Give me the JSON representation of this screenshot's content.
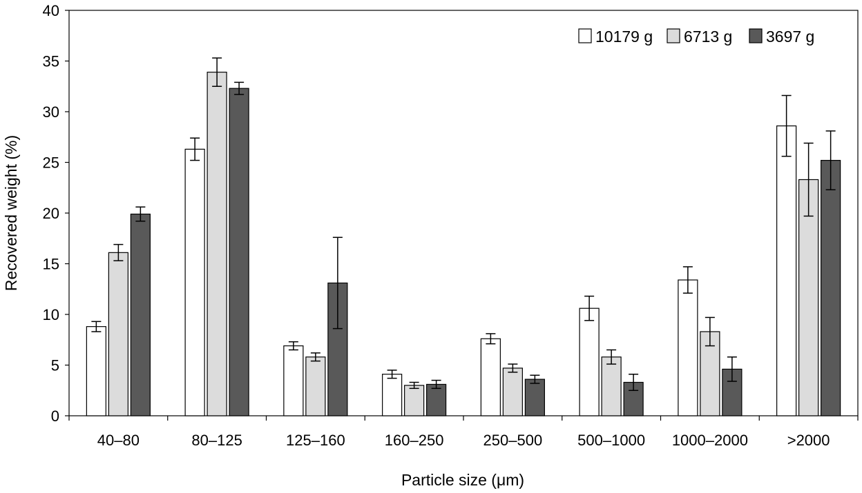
{
  "chart_data": {
    "type": "bar",
    "title": "",
    "xlabel": "Particle size (μm)",
    "ylabel": "Recovered weight (%)",
    "ylim": [
      0,
      40
    ],
    "yticks": [
      0,
      5,
      10,
      15,
      20,
      25,
      30,
      35,
      40
    ],
    "categories": [
      "40–80",
      "80–125",
      "125–160",
      "160–250",
      "250–500",
      "500–1000",
      "1000–2000",
      ">2000"
    ],
    "series": [
      {
        "name": "10179 g",
        "color": "#ffffff",
        "values": [
          8.8,
          26.3,
          6.9,
          4.1,
          7.6,
          10.6,
          13.4,
          28.6
        ],
        "errors": [
          0.5,
          1.1,
          0.4,
          0.4,
          0.5,
          1.2,
          1.3,
          3.0
        ]
      },
      {
        "name": "6713 g",
        "color": "#dcdcdc",
        "values": [
          16.1,
          33.9,
          5.8,
          3.0,
          4.7,
          5.8,
          8.3,
          23.3
        ],
        "errors": [
          0.8,
          1.4,
          0.4,
          0.3,
          0.4,
          0.7,
          1.4,
          3.6
        ]
      },
      {
        "name": "3697 g",
        "color": "#595959",
        "values": [
          19.9,
          32.3,
          13.1,
          3.1,
          3.6,
          3.3,
          4.6,
          25.2
        ],
        "errors": [
          0.7,
          0.6,
          4.5,
          0.4,
          0.4,
          0.8,
          1.2,
          2.9
        ]
      }
    ],
    "legend_position": "top-right",
    "grid": false
  }
}
